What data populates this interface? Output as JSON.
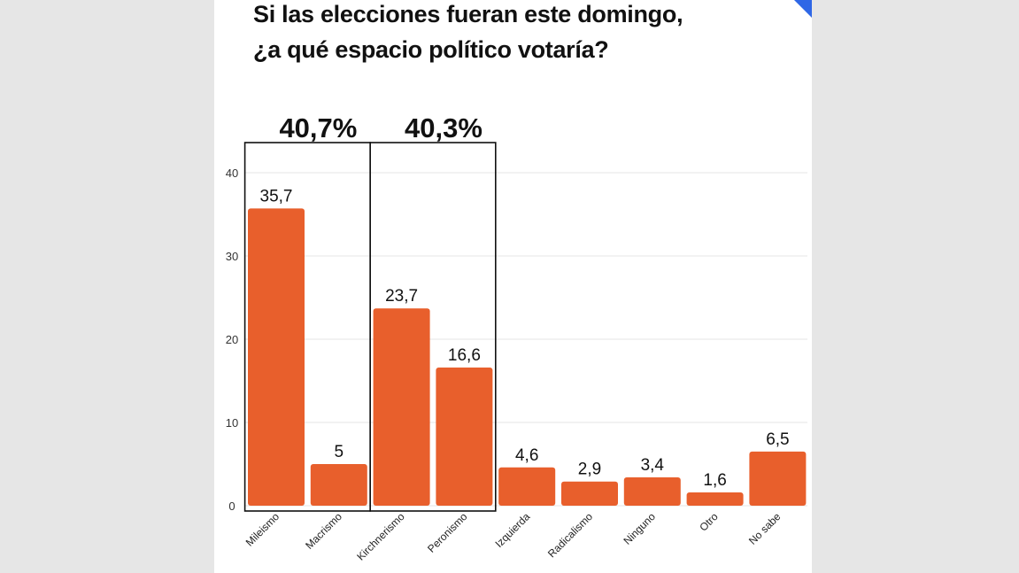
{
  "title_lines": [
    "Si las elecciones fueran este domingo,",
    "¿a qué espacio político votaría?"
  ],
  "colors": {
    "bar": "#e85f2c",
    "grid": "#e4e4e4",
    "accent": "#2f67e6"
  },
  "chart_data": {
    "type": "bar",
    "title": "Si las elecciones fueran este domingo, ¿a qué espacio político votaría?",
    "xlabel": "",
    "ylabel": "",
    "ylim": [
      0,
      40
    ],
    "yticks": [
      0,
      10,
      20,
      30,
      40
    ],
    "grid": true,
    "categories": [
      "Mileismo",
      "Macrismo",
      "Kirchnerismo",
      "Peronismo",
      "Izquierda",
      "Radicalismo",
      "Ninguno",
      "Otro",
      "No sabe"
    ],
    "values": [
      35.7,
      5,
      23.7,
      16.6,
      4.6,
      2.9,
      3.4,
      1.6,
      6.5
    ],
    "value_labels": [
      "35,7",
      "5",
      "23,7",
      "16,6",
      "4,6",
      "2,9",
      "3,4",
      "1,6",
      "6,5"
    ],
    "groups": [
      {
        "label": "40,7%",
        "categories": [
          "Mileismo",
          "Macrismo"
        ]
      },
      {
        "label": "40,3%",
        "categories": [
          "Kirchnerismo",
          "Peronismo"
        ]
      }
    ]
  }
}
